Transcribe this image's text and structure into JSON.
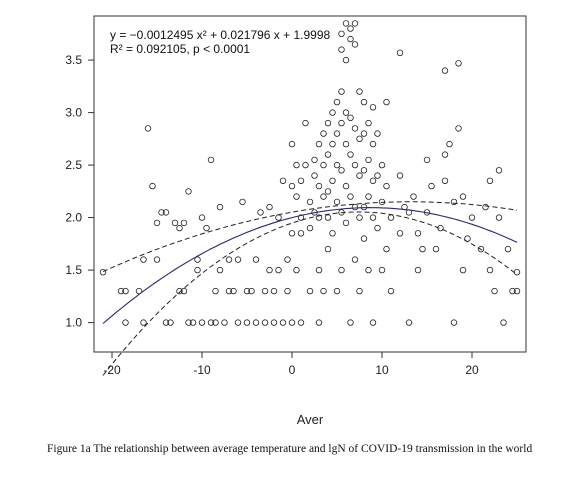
{
  "caption": "Figure 1a    The relationship between average temperature and lgN of COVID-19 transmission in the world",
  "chart_data": {
    "type": "scatter",
    "title": "",
    "xlabel": "Aver",
    "ylabel": "",
    "xlim": [
      -22,
      26
    ],
    "ylim": [
      0.72,
      3.92
    ],
    "xticks": [
      -20,
      -10,
      0,
      10,
      20
    ],
    "yticks": [
      1.0,
      1.5,
      2.0,
      2.5,
      3.0,
      3.5
    ],
    "xtick_labels": [
      "-20",
      "-10",
      "0",
      "10",
      "20"
    ],
    "ytick_labels": [
      "1.0",
      "1.5",
      "2.0",
      "2.5",
      "3.0",
      "3.5"
    ],
    "equation": "y = −0.0012495 x² + 0.021796 x + 1.9998",
    "r_squared": "R² = 0.092105,  p < 0.0001",
    "fit": {
      "a": -0.0012495,
      "b": 0.021796,
      "c": 1.9998
    },
    "grid": false,
    "points": [
      [
        -21,
        1.48
      ],
      [
        -19,
        1.3
      ],
      [
        -18.5,
        1.3
      ],
      [
        -18.5,
        1.0
      ],
      [
        -17,
        1.3
      ],
      [
        -16.5,
        1.6
      ],
      [
        -16.5,
        1.0
      ],
      [
        -16,
        2.85
      ],
      [
        -15.5,
        2.3
      ],
      [
        -15,
        1.6
      ],
      [
        -15,
        1.95
      ],
      [
        -14.5,
        2.05
      ],
      [
        -14,
        2.05
      ],
      [
        -14,
        1.0
      ],
      [
        -13.5,
        1.0
      ],
      [
        -13,
        1.95
      ],
      [
        -12.5,
        1.3
      ],
      [
        -12.5,
        1.9
      ],
      [
        -12,
        1.3
      ],
      [
        -12,
        1.95
      ],
      [
        -11.5,
        2.25
      ],
      [
        -11.5,
        1.0
      ],
      [
        -11,
        1.0
      ],
      [
        -10.5,
        1.5
      ],
      [
        -10.5,
        1.6
      ],
      [
        -10,
        2.0
      ],
      [
        -10,
        1.0
      ],
      [
        -9.5,
        1.9
      ],
      [
        -9,
        2.55
      ],
      [
        -9,
        1.0
      ],
      [
        -8.5,
        1.3
      ],
      [
        -8.5,
        1.0
      ],
      [
        -8,
        2.1
      ],
      [
        -8,
        1.5
      ],
      [
        -7.5,
        1.0
      ],
      [
        -7,
        1.3
      ],
      [
        -7,
        1.6
      ],
      [
        -6.5,
        1.3
      ],
      [
        -6,
        1.6
      ],
      [
        -6,
        1.0
      ],
      [
        -5.5,
        2.15
      ],
      [
        -5,
        1.3
      ],
      [
        -5,
        1.0
      ],
      [
        -4.5,
        1.3
      ],
      [
        -4,
        1.0
      ],
      [
        -4,
        1.6
      ],
      [
        -3.5,
        2.05
      ],
      [
        -3,
        1.0
      ],
      [
        -3,
        1.3
      ],
      [
        -2.5,
        2.1
      ],
      [
        -2.5,
        1.5
      ],
      [
        -2,
        1.0
      ],
      [
        -2,
        1.3
      ],
      [
        -1.5,
        2.0
      ],
      [
        -1.5,
        1.5
      ],
      [
        -1,
        1.0
      ],
      [
        -1,
        2.35
      ],
      [
        -0.5,
        1.3
      ],
      [
        -0.5,
        1.6
      ],
      [
        0,
        1.0
      ],
      [
        0,
        2.7
      ],
      [
        0,
        2.3
      ],
      [
        0,
        1.85
      ],
      [
        0.5,
        2.5
      ],
      [
        0.5,
        2.2
      ],
      [
        0.5,
        1.5
      ],
      [
        1,
        1.0
      ],
      [
        1,
        2.0
      ],
      [
        1,
        2.35
      ],
      [
        1,
        1.85
      ],
      [
        1.5,
        2.5
      ],
      [
        1.5,
        2.9
      ],
      [
        2,
        1.9
      ],
      [
        2,
        2.15
      ],
      [
        2,
        1.3
      ],
      [
        2.5,
        2.55
      ],
      [
        2.5,
        2.4
      ],
      [
        2.5,
        2.05
      ],
      [
        3,
        2.7
      ],
      [
        3,
        2.3
      ],
      [
        3,
        2.0
      ],
      [
        3,
        1.0
      ],
      [
        3,
        1.5
      ],
      [
        3.5,
        2.8
      ],
      [
        3.5,
        2.5
      ],
      [
        3.5,
        2.2
      ],
      [
        3.5,
        1.3
      ],
      [
        4,
        2.9
      ],
      [
        4,
        2.6
      ],
      [
        4,
        2.25
      ],
      [
        4,
        2.0
      ],
      [
        4,
        1.7
      ],
      [
        4.5,
        3.0
      ],
      [
        4.5,
        2.7
      ],
      [
        4.5,
        2.35
      ],
      [
        4.5,
        1.85
      ],
      [
        5,
        3.1
      ],
      [
        5,
        2.8
      ],
      [
        5,
        2.5
      ],
      [
        5,
        2.15
      ],
      [
        5,
        1.3
      ],
      [
        5.5,
        3.75
      ],
      [
        5.5,
        3.6
      ],
      [
        5.5,
        3.2
      ],
      [
        5.5,
        2.9
      ],
      [
        5.5,
        2.45
      ],
      [
        5.5,
        2.05
      ],
      [
        5.5,
        1.5
      ],
      [
        6,
        3.85
      ],
      [
        6,
        3.5
      ],
      [
        6,
        3.0
      ],
      [
        6,
        2.7
      ],
      [
        6,
        2.3
      ],
      [
        6,
        1.95
      ],
      [
        6.5,
        3.8
      ],
      [
        6.5,
        3.7
      ],
      [
        6.5,
        2.95
      ],
      [
        6.5,
        2.6
      ],
      [
        6.5,
        2.2
      ],
      [
        6.5,
        1.0
      ],
      [
        7,
        3.85
      ],
      [
        7,
        3.65
      ],
      [
        7,
        2.85
      ],
      [
        7,
        2.5
      ],
      [
        7,
        2.1
      ],
      [
        7,
        1.6
      ],
      [
        7.5,
        3.2
      ],
      [
        7.5,
        2.75
      ],
      [
        7.5,
        2.4
      ],
      [
        7.5,
        2.0
      ],
      [
        7.5,
        1.3
      ],
      [
        8,
        3.1
      ],
      [
        8,
        2.8
      ],
      [
        8,
        2.45
      ],
      [
        8,
        2.1
      ],
      [
        8,
        1.8
      ],
      [
        8.5,
        2.9
      ],
      [
        8.5,
        2.55
      ],
      [
        8.5,
        2.2
      ],
      [
        8.5,
        1.5
      ],
      [
        9,
        3.05
      ],
      [
        9,
        2.7
      ],
      [
        9,
        2.35
      ],
      [
        9,
        2.0
      ],
      [
        9,
        1.0
      ],
      [
        9.5,
        2.8
      ],
      [
        9.5,
        2.4
      ],
      [
        9.5,
        1.9
      ],
      [
        10,
        2.5
      ],
      [
        10,
        2.15
      ],
      [
        10,
        1.5
      ],
      [
        10.5,
        3.1
      ],
      [
        10.5,
        2.3
      ],
      [
        10.5,
        1.7
      ],
      [
        11,
        2.0
      ],
      [
        11,
        1.3
      ],
      [
        12,
        3.57
      ],
      [
        12,
        2.4
      ],
      [
        12,
        1.85
      ],
      [
        12.5,
        2.1
      ],
      [
        13,
        1.0
      ],
      [
        13,
        2.05
      ],
      [
        13.5,
        2.2
      ],
      [
        14,
        1.85
      ],
      [
        14,
        1.5
      ],
      [
        14.5,
        1.7
      ],
      [
        15,
        2.55
      ],
      [
        15,
        2.05
      ],
      [
        15.5,
        2.3
      ],
      [
        16,
        1.7
      ],
      [
        16.5,
        1.9
      ],
      [
        17,
        3.4
      ],
      [
        17,
        2.6
      ],
      [
        17,
        2.35
      ],
      [
        17.5,
        2.7
      ],
      [
        18,
        1.0
      ],
      [
        18,
        2.15
      ],
      [
        18.5,
        2.85
      ],
      [
        18.5,
        3.47
      ],
      [
        19,
        2.2
      ],
      [
        19,
        1.5
      ],
      [
        19.5,
        1.8
      ],
      [
        20,
        2.0
      ],
      [
        21,
        1.7
      ],
      [
        21.5,
        2.1
      ],
      [
        22,
        2.35
      ],
      [
        22,
        1.5
      ],
      [
        22.5,
        1.3
      ],
      [
        23,
        2.45
      ],
      [
        23,
        2.0
      ],
      [
        23.5,
        1.0
      ],
      [
        24,
        1.7
      ],
      [
        24.5,
        1.3
      ],
      [
        25,
        1.48
      ],
      [
        25,
        1.3
      ]
    ]
  }
}
